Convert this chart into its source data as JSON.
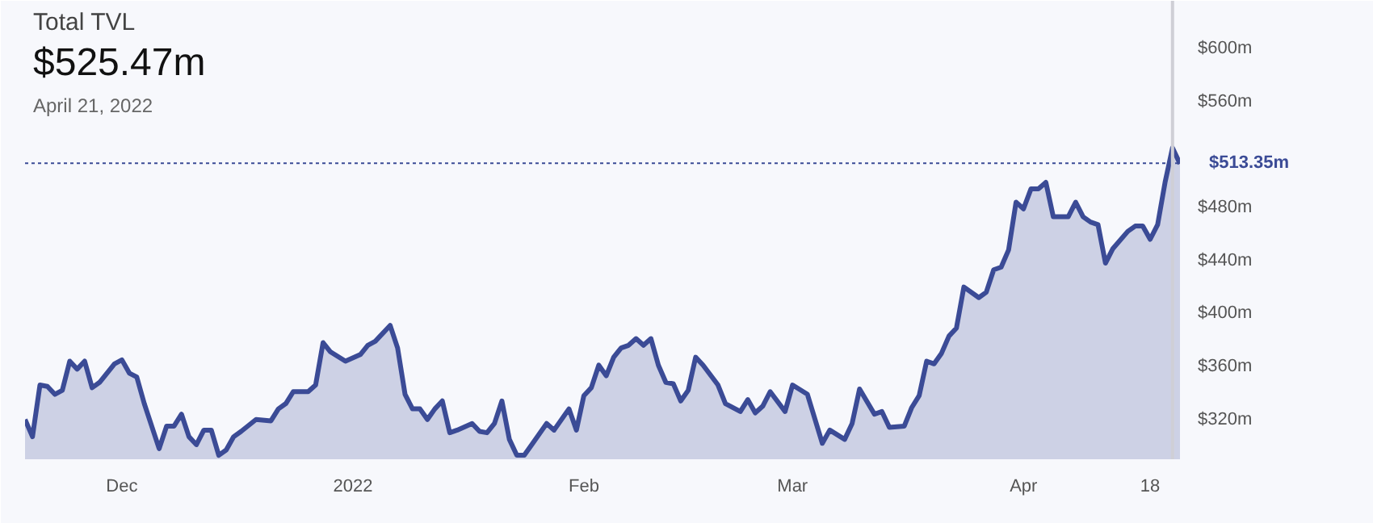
{
  "chart_data": {
    "type": "area",
    "title": "Total TVL",
    "subtitle": "$525.47m",
    "annotations": [
      "April 21, 2022"
    ],
    "x": [
      "2021-11-18",
      "2021-11-19",
      "2021-11-20",
      "2021-11-21",
      "2021-11-22",
      "2021-11-23",
      "2021-11-24",
      "2021-11-25",
      "2021-11-26",
      "2021-11-27",
      "2021-11-28",
      "2021-11-30",
      "2021-12-01",
      "2021-12-02",
      "2021-12-03",
      "2021-12-04",
      "2021-12-06",
      "2021-12-07",
      "2021-12-08",
      "2021-12-09",
      "2021-12-10",
      "2021-12-11",
      "2021-12-12",
      "2021-12-13",
      "2021-12-14",
      "2021-12-15",
      "2021-12-16",
      "2021-12-17",
      "2021-12-19",
      "2021-12-21",
      "2021-12-22",
      "2021-12-23",
      "2021-12-24",
      "2021-12-26",
      "2021-12-27",
      "2021-12-28",
      "2021-12-29",
      "2021-12-31",
      "2022-01-02",
      "2022-01-03",
      "2022-01-04",
      "2022-01-06",
      "2022-01-07",
      "2022-01-08",
      "2022-01-09",
      "2022-01-10",
      "2022-01-11",
      "2022-01-12",
      "2022-01-13",
      "2022-01-14",
      "2022-01-15",
      "2022-01-17",
      "2022-01-18",
      "2022-01-19",
      "2022-01-20",
      "2022-01-21",
      "2022-01-22",
      "2022-01-23",
      "2022-01-24",
      "2022-01-25",
      "2022-01-27",
      "2022-01-28",
      "2022-01-30",
      "2022-01-31",
      "2022-02-01",
      "2022-02-02",
      "2022-02-03",
      "2022-02-04",
      "2022-02-05",
      "2022-02-06",
      "2022-02-07",
      "2022-02-08",
      "2022-02-09",
      "2022-02-10",
      "2022-02-11",
      "2022-02-12",
      "2022-02-13",
      "2022-02-14",
      "2022-02-15",
      "2022-02-16",
      "2022-02-17",
      "2022-02-19",
      "2022-02-20",
      "2022-02-22",
      "2022-02-23",
      "2022-02-24",
      "2022-02-25",
      "2022-02-26",
      "2022-02-28",
      "2022-03-01",
      "2022-03-03",
      "2022-03-05",
      "2022-03-06",
      "2022-03-08",
      "2022-03-09",
      "2022-03-10",
      "2022-03-12",
      "2022-03-13",
      "2022-03-14",
      "2022-03-16",
      "2022-03-17",
      "2022-03-18",
      "2022-03-19",
      "2022-03-20",
      "2022-03-21",
      "2022-03-22",
      "2022-03-23",
      "2022-03-24",
      "2022-03-26",
      "2022-03-27",
      "2022-03-28",
      "2022-03-29",
      "2022-03-30",
      "2022-03-31",
      "2022-04-01",
      "2022-04-02",
      "2022-04-03",
      "2022-04-04",
      "2022-04-05",
      "2022-04-07",
      "2022-04-08",
      "2022-04-09",
      "2022-04-10",
      "2022-04-11",
      "2022-04-12",
      "2022-04-13",
      "2022-04-15",
      "2022-04-16",
      "2022-04-17",
      "2022-04-18",
      "2022-04-19",
      "2022-04-20",
      "2022-04-21",
      "2022-04-22"
    ],
    "series": [
      {
        "color": "#3b4b96",
        "values": [
          320,
          307,
          346,
          345,
          339,
          342,
          364,
          358,
          364,
          344,
          348,
          362,
          365,
          355,
          352,
          332,
          298,
          315,
          315,
          324,
          307,
          301,
          312,
          312,
          293,
          297,
          307,
          311,
          320,
          319,
          328,
          332,
          341,
          341,
          346,
          378,
          371,
          364,
          369,
          376,
          379,
          391,
          374,
          339,
          328,
          328,
          320,
          328,
          334,
          310,
          312,
          317,
          311,
          310,
          317,
          334,
          305,
          293,
          293,
          301,
          317,
          312,
          328,
          312,
          338,
          344,
          361,
          353,
          367,
          374,
          376,
          381,
          376,
          381,
          361,
          348,
          347,
          334,
          342,
          367,
          361,
          346,
          332,
          326,
          335,
          325,
          330,
          341,
          326,
          346,
          339,
          302,
          312,
          305,
          317,
          343,
          324,
          326,
          314,
          315,
          329,
          338,
          364,
          362,
          370,
          383,
          389,
          420,
          412,
          416,
          433,
          435,
          448,
          484,
          479,
          494,
          494,
          499,
          473,
          473,
          484,
          473,
          469,
          467,
          438,
          449,
          462,
          466,
          466,
          456,
          467,
          499,
          525,
          513
        ]
      }
    ],
    "xlim": [
      "2021-11-18",
      "2022-04-22"
    ],
    "xticks": [
      {
        "value": "2021-12-01",
        "label": "Dec"
      },
      {
        "value": "2022-01-01",
        "label": "2022"
      },
      {
        "value": "2022-02-01",
        "label": "Feb"
      },
      {
        "value": "2022-03-01",
        "label": "Mar"
      },
      {
        "value": "2022-04-01",
        "label": "Apr"
      },
      {
        "value": "2022-04-18",
        "label": "18"
      }
    ],
    "ylim": [
      290,
      636
    ],
    "yticks": [
      {
        "value": 320,
        "label": "$320m"
      },
      {
        "value": 360,
        "label": "$360m"
      },
      {
        "value": 400,
        "label": "$400m"
      },
      {
        "value": 440,
        "label": "$440m"
      },
      {
        "value": 480,
        "label": "$480m"
      },
      {
        "value": 560,
        "label": "$560m"
      },
      {
        "value": 600,
        "label": "$600m"
      }
    ],
    "ref_lines": [
      {
        "axis": "y",
        "value": 513.35,
        "label": "$513.35m",
        "color": "#3b4b96",
        "line_style": "dotted"
      },
      {
        "axis": "x",
        "value": "2022-04-21",
        "label": null,
        "color": "#cfcfd6",
        "line_style": "solid"
      }
    ],
    "grid": false,
    "marker": "none",
    "line_style": "solid"
  }
}
